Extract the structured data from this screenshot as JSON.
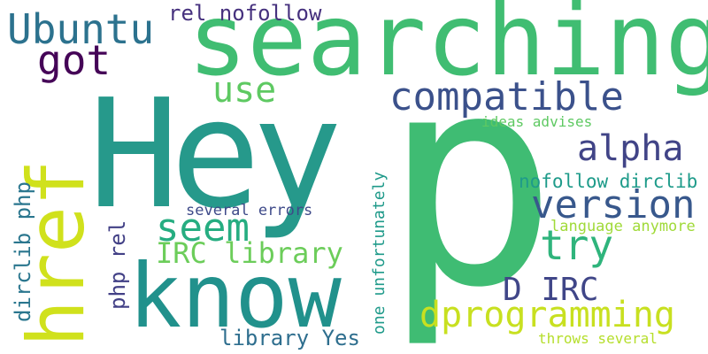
{
  "word_cloud": {
    "words": {
      "p": "p",
      "hey": "Hey",
      "searching": "searching",
      "know": "know",
      "href": "href",
      "ubuntu": "Ubuntu",
      "got": "got",
      "compatible": "compatible",
      "alpha": "alpha",
      "version": "version",
      "try": "try",
      "seem": "seem",
      "use": "use",
      "d_irc": "D IRC",
      "dprogramming": "dprogramming",
      "irc_library": "IRC library",
      "library_yes": "library Yes",
      "rel_nofollow": "rel nofollow",
      "nofollow_dirclib": "nofollow dirclib",
      "several_errors": "several errors",
      "ideas_advises": "ideas advises",
      "language_anymore": "language anymore",
      "throws_several": "throws several",
      "dirclib_php": "dirclib php",
      "php_rel": "php rel",
      "one_unfortunately": "one unfortunately"
    },
    "colors": {
      "background": "#ffffff"
    }
  }
}
